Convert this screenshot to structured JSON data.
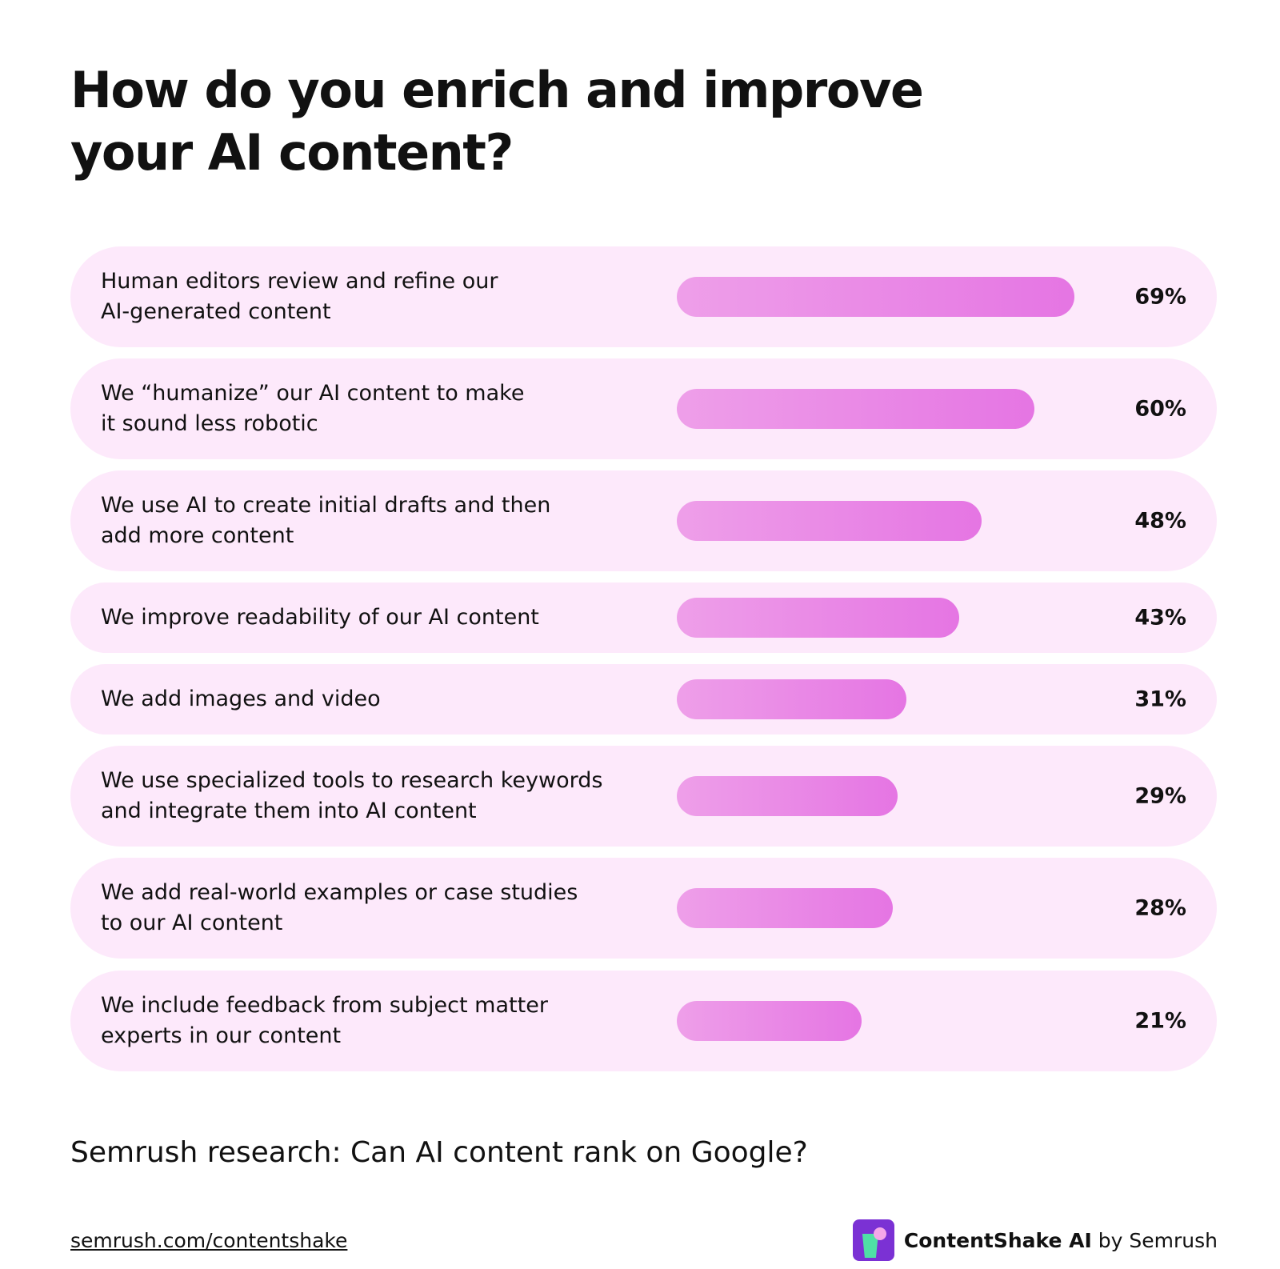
{
  "title": "How do you enrich and improve your AI content?",
  "subtitle": "Semrush research: Can AI content rank on Google?",
  "footer": {
    "link": "semrush.com/contentshake",
    "brand_bold": "ContentShake AI",
    "brand_rest": "by Semrush"
  },
  "colors": {
    "row_bg": "#fde9fb",
    "bar_start": "#ee9fe9",
    "bar_end": "#e575e3",
    "logo_bg": "#7b31d4"
  },
  "chart_data": {
    "type": "bar",
    "orientation": "horizontal",
    "categories": [
      "Human editors review and refine our\nAI-generated content",
      "We “humanize” our AI content to make\nit sound less robotic",
      "We use AI to create initial drafts and then\nadd more content",
      "We improve readability of our AI content",
      "We add images and video",
      "We use specialized tools to research keywords\nand integrate them into AI content",
      "We add real-world examples or case studies\nto our AI content",
      "We include feedback from subject matter\nexperts in our content"
    ],
    "values": [
      69,
      60,
      48,
      43,
      31,
      29,
      28,
      21
    ],
    "labels": [
      "69%",
      "60%",
      "48%",
      "43%",
      "31%",
      "29%",
      "28%",
      "21%"
    ],
    "unit": "%"
  }
}
